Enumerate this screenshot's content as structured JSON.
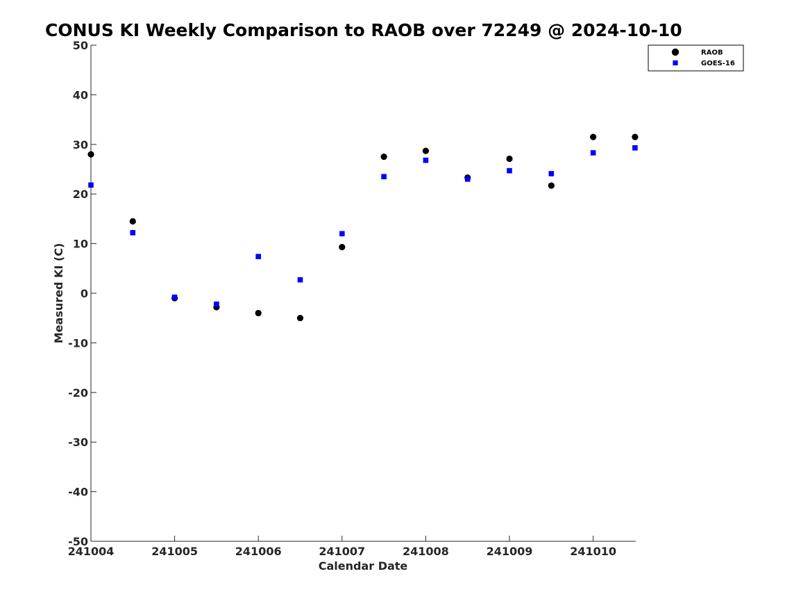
{
  "chart_data": {
    "type": "scatter",
    "title": "CONUS KI Weekly Comparison to RAOB over 72249 @ 2024-10-10",
    "xlabel": "Calendar Date",
    "ylabel": "Measured KI (C)",
    "x_tick_labels": [
      "241004",
      "241005",
      "241006",
      "241007",
      "241008",
      "241009",
      "241010"
    ],
    "y_ticks": [
      50,
      40,
      30,
      20,
      10,
      0,
      -10,
      -20,
      -30,
      -40,
      -50
    ],
    "ylim": [
      -50,
      50
    ],
    "grid": false,
    "legend_position": "top-right",
    "series": [
      {
        "name": "RAOB",
        "marker": "circle",
        "color": "#000000",
        "points": [
          {
            "x": "2024-10-04 00Z",
            "y": 28
          },
          {
            "x": "2024-10-04 12Z",
            "y": 14.5
          },
          {
            "x": "2024-10-05 00Z",
            "y": -1
          },
          {
            "x": "2024-10-05 12Z",
            "y": -2.8
          },
          {
            "x": "2024-10-06 00Z",
            "y": -4
          },
          {
            "x": "2024-10-06 12Z",
            "y": -5
          },
          {
            "x": "2024-10-07 00Z",
            "y": 9.3
          },
          {
            "x": "2024-10-07 12Z",
            "y": 27.5
          },
          {
            "x": "2024-10-08 00Z",
            "y": 28.7
          },
          {
            "x": "2024-10-08 12Z",
            "y": 23.3
          },
          {
            "x": "2024-10-09 00Z",
            "y": 27.1
          },
          {
            "x": "2024-10-09 12Z",
            "y": 21.7
          },
          {
            "x": "2024-10-10 00Z",
            "y": 31.5
          },
          {
            "x": "2024-10-10 12Z",
            "y": 31.5
          }
        ]
      },
      {
        "name": "GOES-16",
        "marker": "square",
        "color": "#0000ff",
        "points": [
          {
            "x": "2024-10-04 00Z",
            "y": 21.8
          },
          {
            "x": "2024-10-04 12Z",
            "y": 12.2
          },
          {
            "x": "2024-10-05 00Z",
            "y": -0.8
          },
          {
            "x": "2024-10-05 12Z",
            "y": -2.2
          },
          {
            "x": "2024-10-06 00Z",
            "y": 7.4
          },
          {
            "x": "2024-10-06 12Z",
            "y": 2.7
          },
          {
            "x": "2024-10-07 00Z",
            "y": 12
          },
          {
            "x": "2024-10-07 12Z",
            "y": 23.5
          },
          {
            "x": "2024-10-08 00Z",
            "y": 26.8
          },
          {
            "x": "2024-10-08 12Z",
            "y": 23
          },
          {
            "x": "2024-10-09 00Z",
            "y": 24.7
          },
          {
            "x": "2024-10-09 12Z",
            "y": 24.1
          },
          {
            "x": "2024-10-10 00Z",
            "y": 28.3
          },
          {
            "x": "2024-10-10 12Z",
            "y": 29.3
          }
        ]
      }
    ]
  }
}
